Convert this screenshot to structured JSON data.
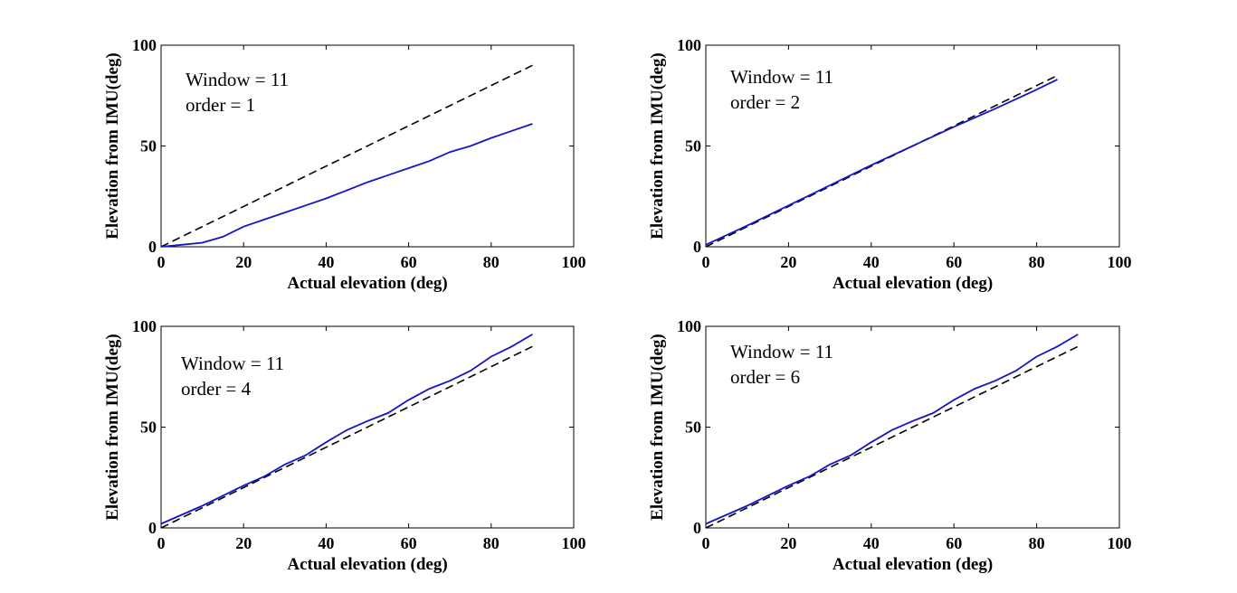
{
  "chart_data": [
    {
      "type": "line",
      "annotation": [
        "Window = 11",
        "order = 1"
      ],
      "xlabel": "Actual elevation (deg)",
      "ylabel": "Elevation from IMU(deg)",
      "xlim": [
        0,
        100
      ],
      "ylim": [
        0,
        100
      ],
      "xticks": [
        "0",
        "20",
        "40",
        "60",
        "80",
        "100"
      ],
      "yticks": [
        "0",
        "50",
        "100"
      ],
      "series": [
        {
          "name": "actual",
          "style": "dashed",
          "color": "#000000",
          "x": [
            0,
            90
          ],
          "y": [
            0,
            90
          ]
        },
        {
          "name": "imu",
          "style": "solid",
          "color": "#1515c8",
          "x": [
            0,
            5,
            10,
            15,
            20,
            25,
            30,
            35,
            40,
            45,
            50,
            55,
            60,
            65,
            70,
            75,
            80,
            85,
            90
          ],
          "y": [
            0,
            1,
            2,
            5,
            10,
            13.5,
            17,
            20.5,
            24,
            28,
            32,
            35.5,
            39,
            42.5,
            47,
            50,
            54,
            57.5,
            61
          ]
        }
      ]
    },
    {
      "type": "line",
      "annotation": [
        "Window = 11",
        "order = 2"
      ],
      "xlabel": "Actual elevation (deg)",
      "ylabel": "Elevation from IMU(deg)",
      "xlim": [
        0,
        100
      ],
      "ylim": [
        0,
        100
      ],
      "xticks": [
        "0",
        "20",
        "40",
        "60",
        "80",
        "100"
      ],
      "yticks": [
        "0",
        "50",
        "100"
      ],
      "series": [
        {
          "name": "actual",
          "style": "dashed",
          "color": "#000000",
          "x": [
            0,
            85
          ],
          "y": [
            0,
            85
          ]
        },
        {
          "name": "imu",
          "style": "solid",
          "color": "#1515c8",
          "x": [
            0,
            10,
            20,
            30,
            40,
            50,
            60,
            70,
            80,
            85
          ],
          "y": [
            1,
            10.5,
            20.5,
            30.5,
            40.5,
            50,
            59.5,
            68.5,
            78,
            83
          ]
        }
      ]
    },
    {
      "type": "line",
      "annotation": [
        "Window = 11",
        "order = 4"
      ],
      "xlabel": "Actual elevation (deg)",
      "ylabel": "Elevation from IMU(deg)",
      "xlim": [
        0,
        100
      ],
      "ylim": [
        0,
        100
      ],
      "xticks": [
        "0",
        "20",
        "40",
        "60",
        "80",
        "100"
      ],
      "yticks": [
        "0",
        "50",
        "100"
      ],
      "series": [
        {
          "name": "actual",
          "style": "dashed",
          "color": "#000000",
          "x": [
            0,
            90
          ],
          "y": [
            0,
            90
          ]
        },
        {
          "name": "imu",
          "style": "solid",
          "color": "#1515c8",
          "x": [
            0,
            5,
            10,
            15,
            20,
            25,
            30,
            35,
            40,
            45,
            50,
            55,
            60,
            65,
            70,
            75,
            80,
            85,
            90
          ],
          "y": [
            2,
            6.5,
            11,
            16,
            21,
            25.5,
            31.5,
            36,
            42.5,
            48.5,
            53,
            57,
            63.5,
            69,
            73,
            78,
            85,
            90,
            96
          ]
        }
      ]
    },
    {
      "type": "line",
      "annotation": [
        "Window = 11",
        "order = 6"
      ],
      "xlabel": "Actual elevation (deg)",
      "ylabel": "Elevation from IMU(deg)",
      "xlim": [
        0,
        100
      ],
      "ylim": [
        0,
        100
      ],
      "xticks": [
        "0",
        "20",
        "40",
        "60",
        "80",
        "100"
      ],
      "yticks": [
        "0",
        "50",
        "100"
      ],
      "series": [
        {
          "name": "actual",
          "style": "dashed",
          "color": "#000000",
          "x": [
            0,
            90
          ],
          "y": [
            0,
            90
          ]
        },
        {
          "name": "imu",
          "style": "solid",
          "color": "#1515c8",
          "x": [
            0,
            5,
            10,
            15,
            20,
            25,
            30,
            35,
            40,
            45,
            50,
            55,
            60,
            65,
            70,
            75,
            80,
            85,
            90
          ],
          "y": [
            2,
            6.5,
            11,
            16,
            21,
            25.5,
            31.5,
            36,
            42.5,
            48.5,
            53,
            57,
            63.5,
            69,
            73,
            78,
            85,
            90,
            96
          ]
        }
      ]
    }
  ]
}
